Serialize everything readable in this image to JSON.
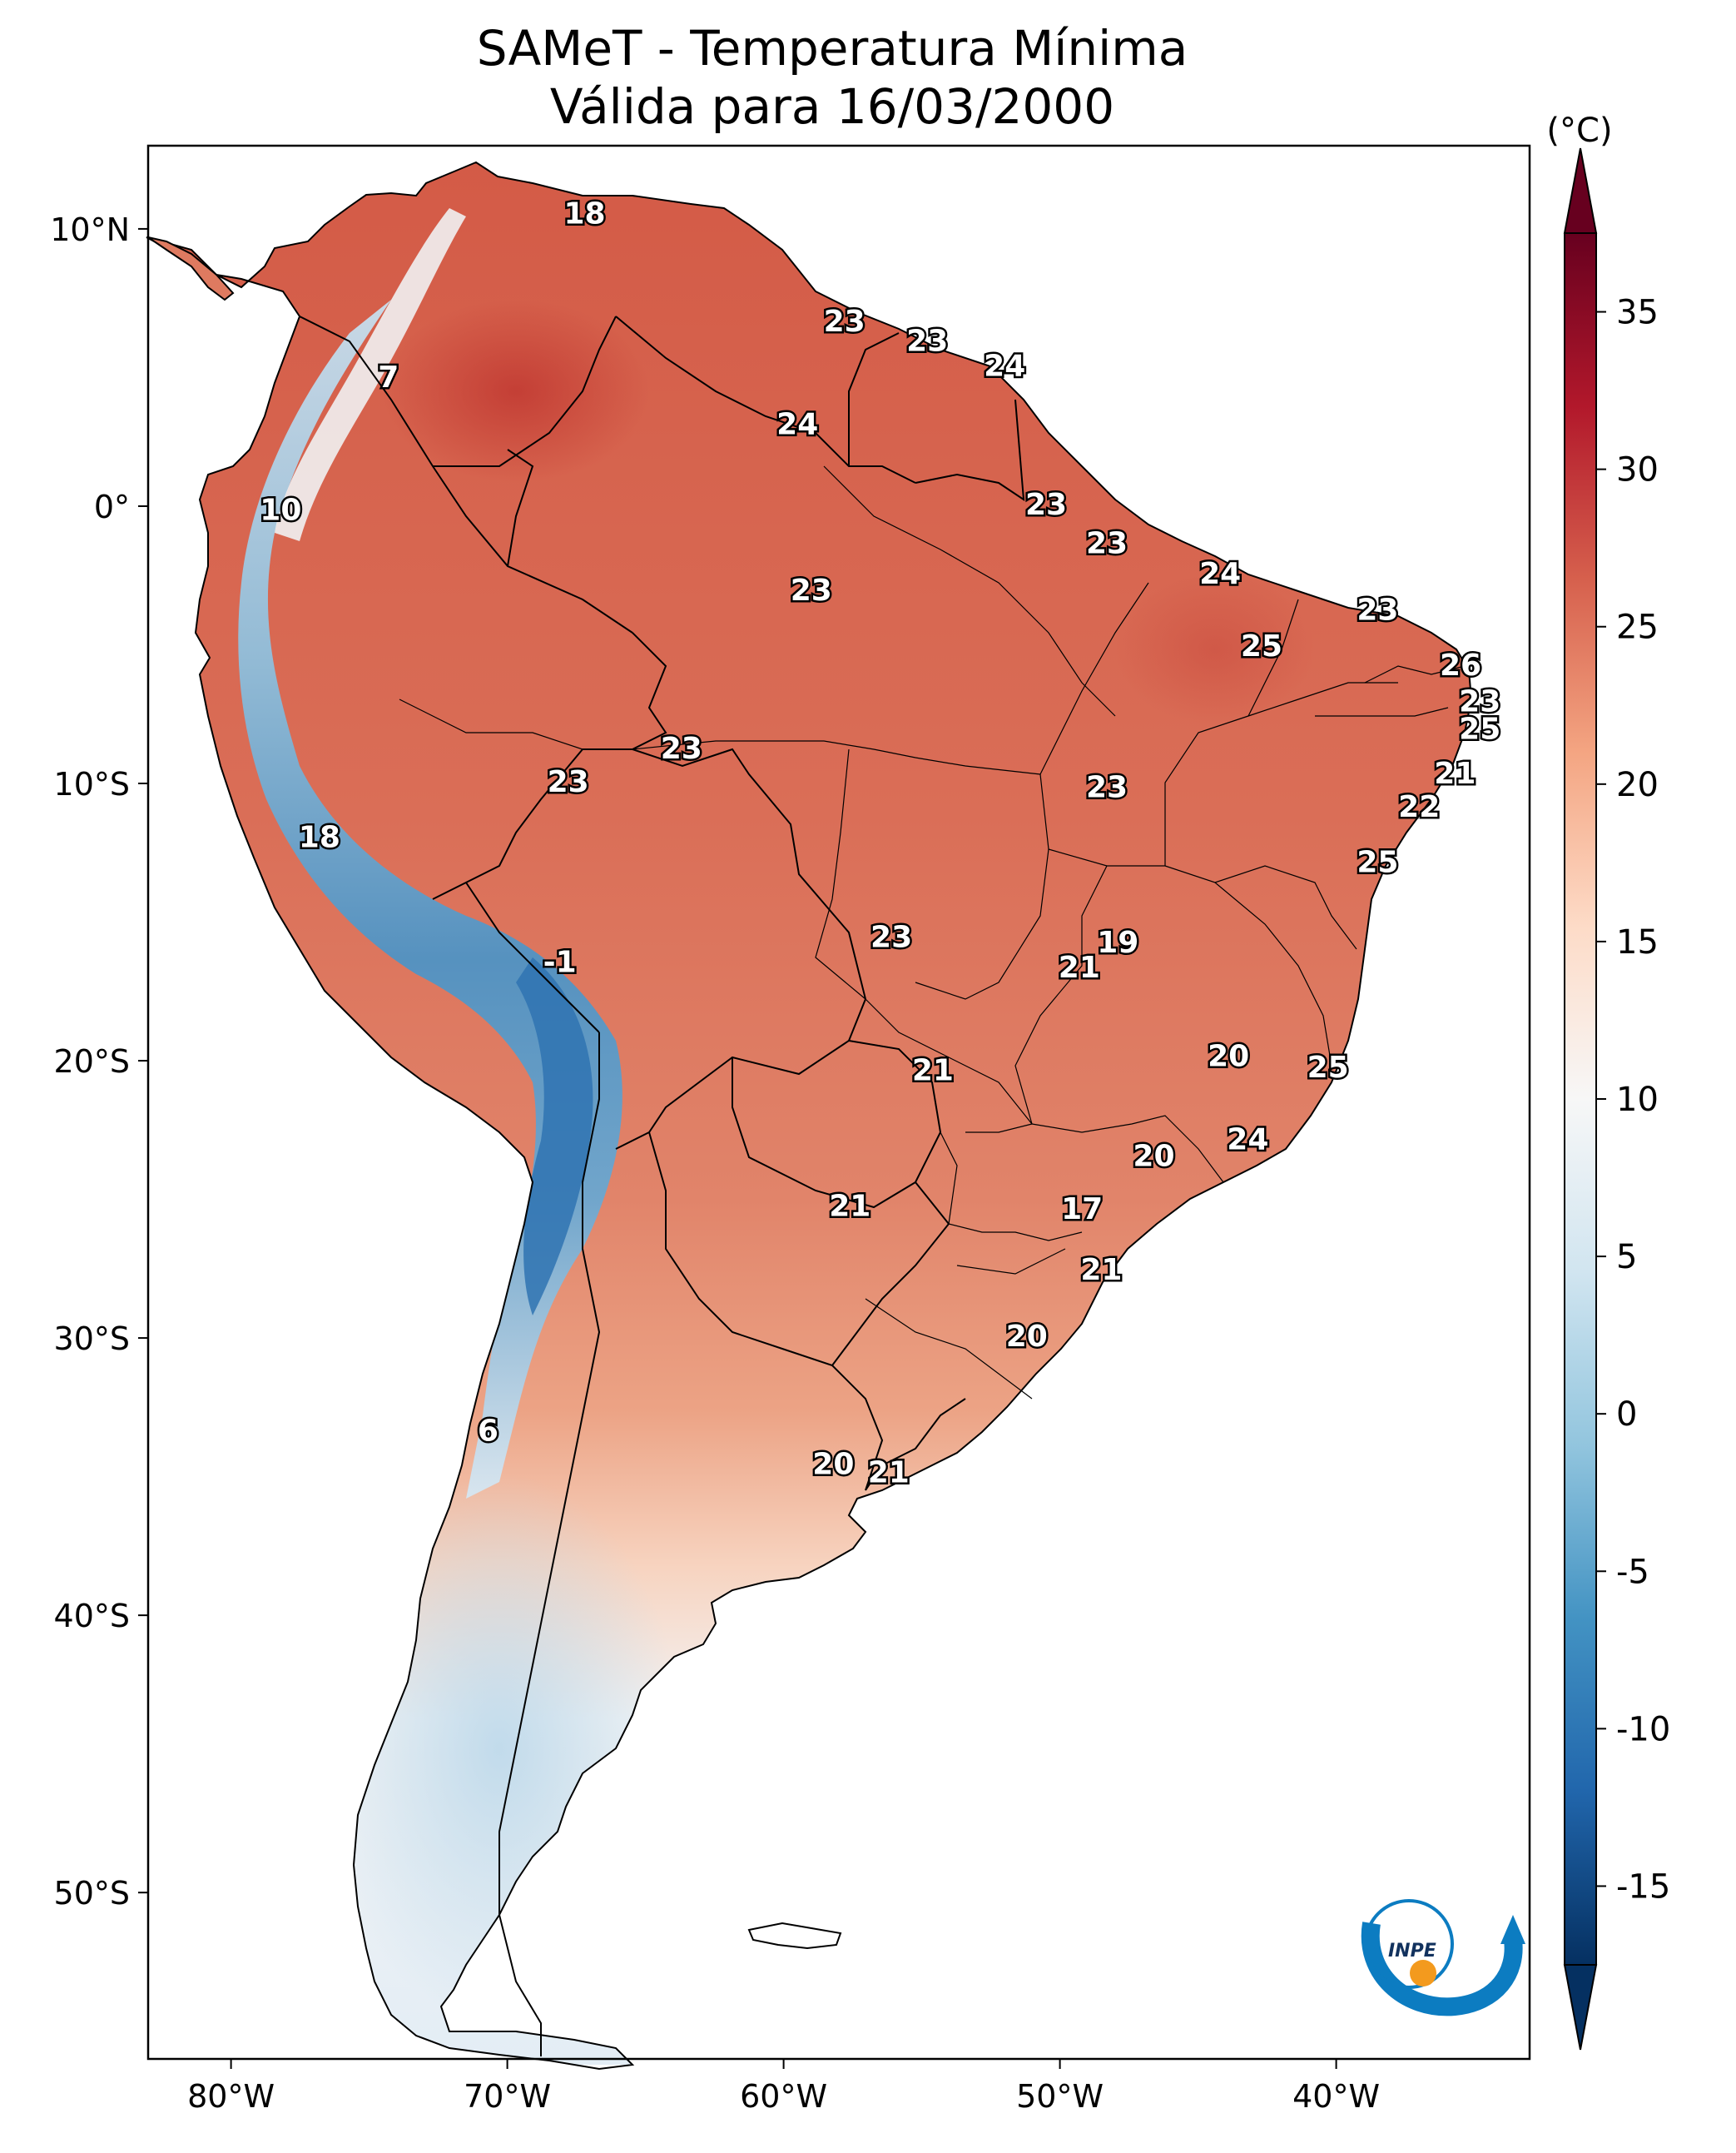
{
  "title": {
    "line1": "SAMeT - Temperatura Mínima",
    "line2": "Válida para 16/03/2000"
  },
  "axes": {
    "lat_labels": [
      {
        "lat": 10,
        "text": "10°N"
      },
      {
        "lat": 0,
        "text": "0°"
      },
      {
        "lat": -10,
        "text": "10°S"
      },
      {
        "lat": -20,
        "text": "20°S"
      },
      {
        "lat": -30,
        "text": "30°S"
      },
      {
        "lat": -40,
        "text": "40°S"
      },
      {
        "lat": -50,
        "text": "50°S"
      }
    ],
    "lon_labels": [
      {
        "lon": -80,
        "text": "80°W"
      },
      {
        "lon": -70,
        "text": "70°W"
      },
      {
        "lon": -60,
        "text": "60°W"
      },
      {
        "lon": -50,
        "text": "50°W"
      },
      {
        "lon": -40,
        "text": "40°W"
      }
    ],
    "lon_range": [
      -83,
      -33
    ],
    "lat_range": [
      -56,
      13
    ]
  },
  "colorbar": {
    "unit": "(°C)",
    "min": -17.5,
    "max": 37.5,
    "ticks": [
      "35",
      "30",
      "25",
      "20",
      "15",
      "10",
      "5",
      "0",
      "-5",
      "-10",
      "-15"
    ],
    "tick_values": [
      35,
      30,
      25,
      20,
      15,
      10,
      5,
      0,
      -5,
      -10,
      -15
    ],
    "colors": [
      "#053061",
      "#2166ac",
      "#4393c3",
      "#92c5de",
      "#d1e5f0",
      "#f7f7f7",
      "#fddbc7",
      "#f4a582",
      "#d6604d",
      "#b2182b",
      "#67001f"
    ]
  },
  "station_values": [
    {
      "text": "18",
      "lon": -67.2,
      "lat": 10.5
    },
    {
      "text": "23",
      "lon": -57.8,
      "lat": 6.6
    },
    {
      "text": "23",
      "lon": -54.8,
      "lat": 5.9
    },
    {
      "text": "24",
      "lon": -52.0,
      "lat": 5.0
    },
    {
      "text": "7",
      "lon": -74.3,
      "lat": 4.6
    },
    {
      "text": "24",
      "lon": -59.5,
      "lat": 2.9
    },
    {
      "text": "10",
      "lon": -78.2,
      "lat": -0.2
    },
    {
      "text": "23",
      "lon": -50.5,
      "lat": 0.0
    },
    {
      "text": "23",
      "lon": -48.3,
      "lat": -1.4
    },
    {
      "text": "24",
      "lon": -44.2,
      "lat": -2.5
    },
    {
      "text": "23",
      "lon": -59.0,
      "lat": -3.1
    },
    {
      "text": "23",
      "lon": -38.5,
      "lat": -3.8
    },
    {
      "text": "25",
      "lon": -42.7,
      "lat": -5.1
    },
    {
      "text": "26",
      "lon": -35.5,
      "lat": -5.8
    },
    {
      "text": "23",
      "lon": -34.8,
      "lat": -7.1
    },
    {
      "text": "25",
      "lon": -34.8,
      "lat": -8.1
    },
    {
      "text": "23",
      "lon": -63.7,
      "lat": -8.8
    },
    {
      "text": "21",
      "lon": -35.7,
      "lat": -9.7
    },
    {
      "text": "23",
      "lon": -67.8,
      "lat": -10.0
    },
    {
      "text": "23",
      "lon": -48.3,
      "lat": -10.2
    },
    {
      "text": "22",
      "lon": -37.0,
      "lat": -10.9
    },
    {
      "text": "18",
      "lon": -76.8,
      "lat": -12.0
    },
    {
      "text": "25",
      "lon": -38.5,
      "lat": -12.9
    },
    {
      "text": "19",
      "lon": -47.9,
      "lat": -15.8
    },
    {
      "text": "23",
      "lon": -56.1,
      "lat": -15.6
    },
    {
      "text": "21",
      "lon": -49.3,
      "lat": -16.7
    },
    {
      "text": "-1",
      "lon": -68.1,
      "lat": -16.5
    },
    {
      "text": "20",
      "lon": -43.9,
      "lat": -19.9
    },
    {
      "text": "25",
      "lon": -40.3,
      "lat": -20.3
    },
    {
      "text": "21",
      "lon": -54.6,
      "lat": -20.4
    },
    {
      "text": "24",
      "lon": -43.2,
      "lat": -22.9
    },
    {
      "text": "20",
      "lon": -46.6,
      "lat": -23.5
    },
    {
      "text": "21",
      "lon": -57.6,
      "lat": -25.3
    },
    {
      "text": "17",
      "lon": -49.2,
      "lat": -25.4
    },
    {
      "text": "21",
      "lon": -48.5,
      "lat": -27.6
    },
    {
      "text": "20",
      "lon": -51.2,
      "lat": -30.0
    },
    {
      "text": "6",
      "lon": -70.7,
      "lat": -33.4
    },
    {
      "text": "20",
      "lon": -58.2,
      "lat": -34.6
    },
    {
      "text": "21",
      "lon": -56.2,
      "lat": -34.9
    }
  ],
  "logo": {
    "text": "INPE"
  }
}
